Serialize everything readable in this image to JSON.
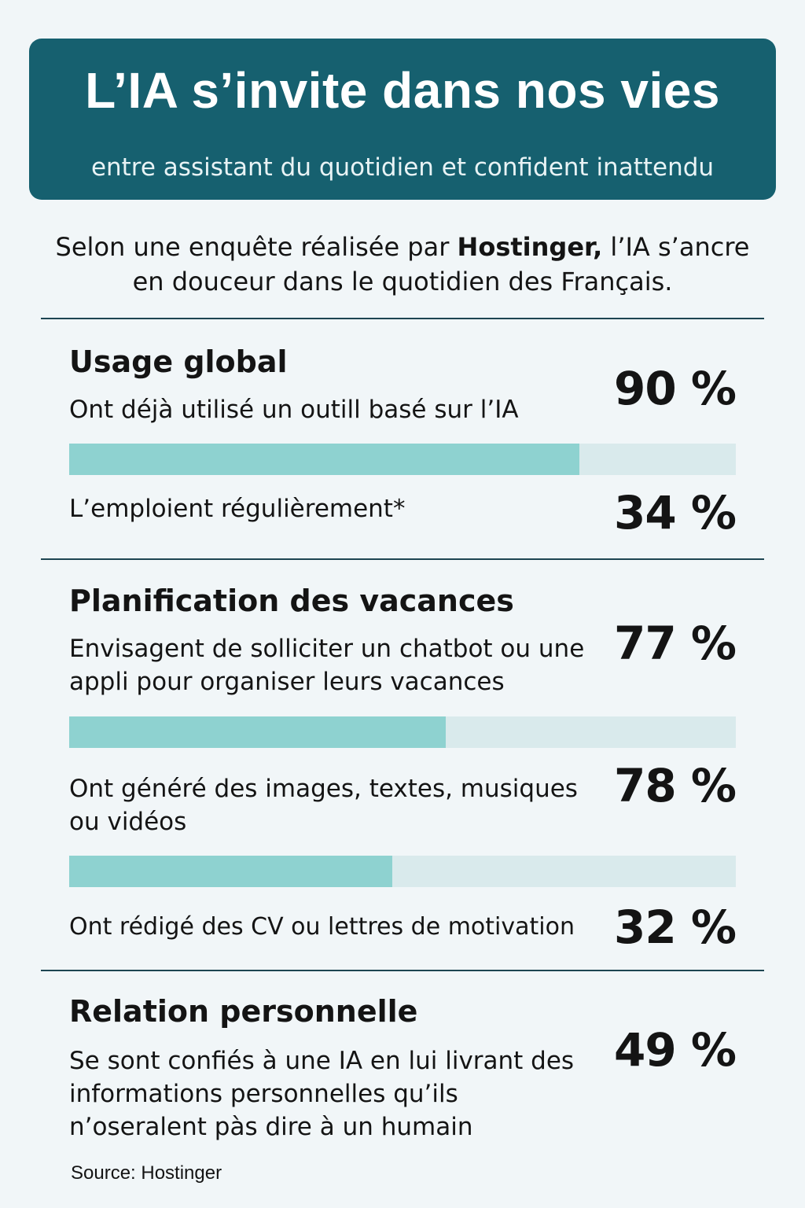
{
  "header": {
    "title": "L’IA s’invite dans nos vies",
    "subtitle": "entre assistant du quotidien et confident inattendu"
  },
  "intro": {
    "before": "Selon une enquête réalisée par ",
    "brand": "Hostinger,",
    "after": " l’IA s’ancre en douceur dans le quotidien des Français."
  },
  "sections": [
    {
      "title": "Usage global",
      "stats": [
        {
          "label": "Ont déjà utilisé un outill basé sur l’IA",
          "value": "90 %"
        },
        {
          "label": "L’emploient régulièrement*",
          "value": "34 %"
        }
      ],
      "bars": [
        {
          "fill": 0.765
        }
      ]
    },
    {
      "title": "Planification des vacances",
      "stats": [
        {
          "label": "Envisagent de solliciter un chatbot ou une appli pour organiser leurs vacances",
          "value": "77 %"
        },
        {
          "label": "Ont généré des images, textes, musiques ou vidéos",
          "value": "78 %"
        },
        {
          "label": "Ont rédigé des CV ou lettres de motivation",
          "value": "32 %"
        }
      ],
      "bars": [
        {
          "fill": 0.565
        },
        {
          "fill": 0.485
        }
      ]
    },
    {
      "title": "Relation personnelle",
      "stats": [
        {
          "label": "Se sont confiés à une IA en lui livrant des informations personnelles qu’ils n’oseralent pàs dire à un humain",
          "value": "49 %"
        }
      ]
    }
  ],
  "source": "Source: Hostinger",
  "colors": {
    "header_bg": "#16606f",
    "bar_fill": "#8ed2d0",
    "bar_track": "#d9eaec",
    "background": "#f1f6f8"
  }
}
